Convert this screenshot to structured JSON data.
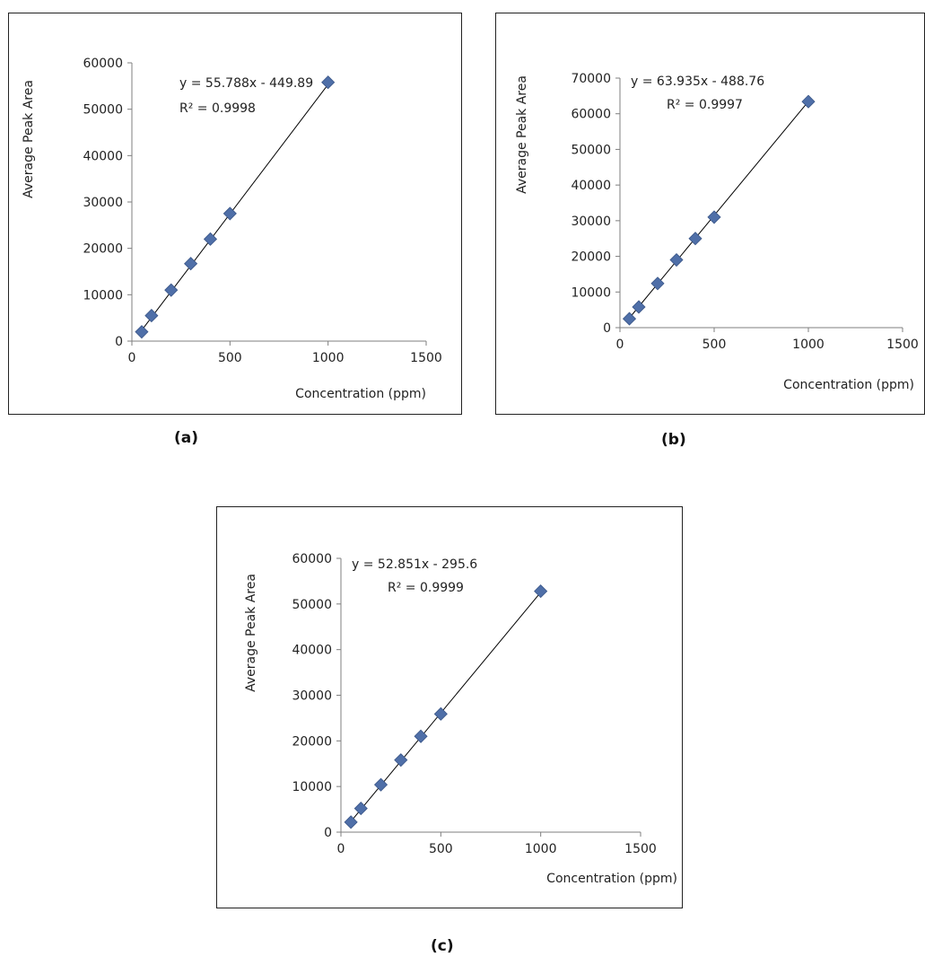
{
  "captions": [
    "(a)",
    "(b)",
    "(c)"
  ],
  "colors": {
    "marker": "#4F6FA8",
    "marker_stroke": "#3A5688",
    "trend": "#000000",
    "axis": "#7f7f7f"
  },
  "chart_data": [
    {
      "type": "scatter",
      "xlabel": "Concentration (ppm)",
      "ylabel": "Average Peak Area",
      "xlim": [
        0,
        1500
      ],
      "ylim": [
        0,
        60000
      ],
      "xticks": [
        "0",
        "500",
        "1000",
        "1500"
      ],
      "yticks": [
        "0",
        "10000",
        "20000",
        "30000",
        "40000",
        "50000",
        "60000"
      ],
      "x": [
        50,
        100,
        200,
        300,
        400,
        500,
        1000
      ],
      "y": [
        2000,
        5500,
        11000,
        16700,
        22000,
        27500,
        55800
      ],
      "trendline": {
        "equation": "y = 55.788x - 449.89",
        "r2": "R² = 0.9998",
        "slope": 55.788,
        "intercept": -449.89
      },
      "grid": false,
      "legend": "none"
    },
    {
      "type": "scatter",
      "xlabel": "Concentration (ppm)",
      "ylabel": "Average Peak Area",
      "xlim": [
        0,
        1500
      ],
      "ylim": [
        0,
        70000
      ],
      "xticks": [
        "0",
        "500",
        "1000",
        "1500"
      ],
      "yticks": [
        "0",
        "10000",
        "20000",
        "30000",
        "40000",
        "50000",
        "60000",
        "70000"
      ],
      "x": [
        50,
        100,
        200,
        300,
        400,
        500,
        1000
      ],
      "y": [
        2500,
        5800,
        12400,
        19000,
        25000,
        31000,
        63400
      ],
      "trendline": {
        "equation": "y = 63.935x - 488.76",
        "r2": "R² = 0.9997",
        "slope": 63.935,
        "intercept": -488.76
      },
      "grid": false,
      "legend": "none"
    },
    {
      "type": "scatter",
      "xlabel": "Concentration (ppm)",
      "ylabel": "Average Peak Area",
      "xlim": [
        0,
        1500
      ],
      "ylim": [
        0,
        60000
      ],
      "xticks": [
        "0",
        "500",
        "1000",
        "1500"
      ],
      "yticks": [
        "0",
        "10000",
        "20000",
        "30000",
        "40000",
        "50000",
        "60000"
      ],
      "x": [
        50,
        100,
        200,
        300,
        400,
        500,
        1000
      ],
      "y": [
        2200,
        5200,
        10400,
        15800,
        21000,
        25900,
        52800
      ],
      "trendline": {
        "equation": "y = 52.851x - 295.6",
        "r2": "R² = 0.9999",
        "slope": 52.851,
        "intercept": -295.6
      },
      "grid": false,
      "legend": "none"
    }
  ]
}
